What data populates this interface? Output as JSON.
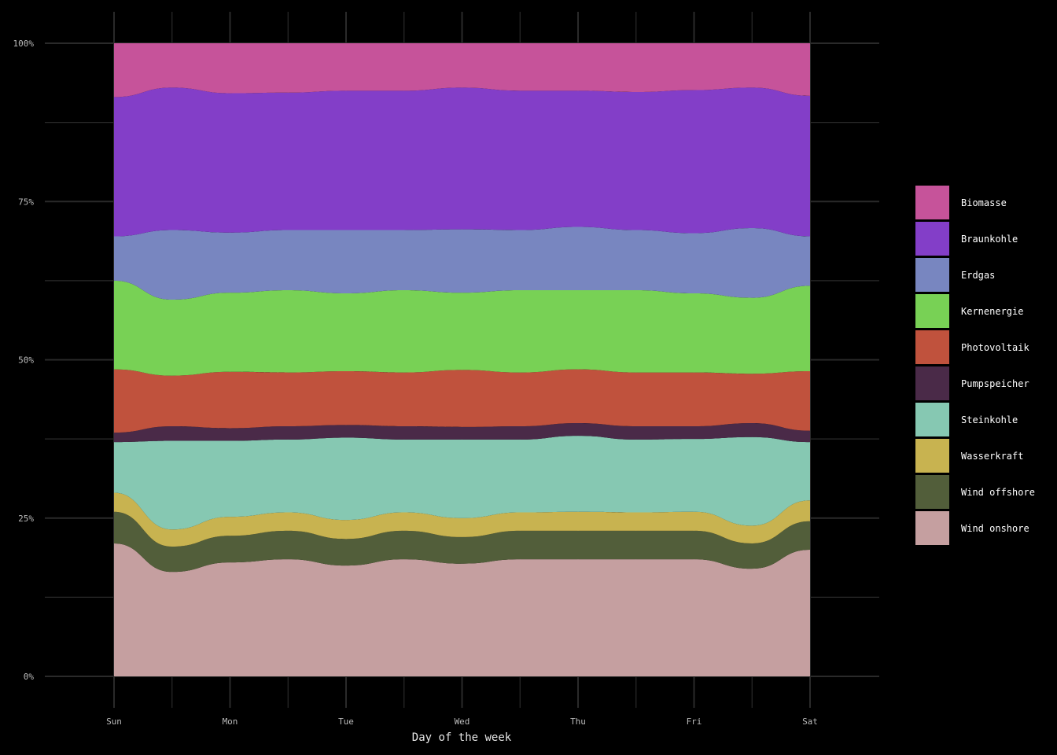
{
  "chart_data": {
    "type": "area",
    "stacked_percent": true,
    "background": "#000000",
    "grid": true,
    "grid_color": "#2a2a2a",
    "xlabel": "Day of the week",
    "ylabel": "",
    "x_ticks": [
      "Sun",
      "Mon",
      "Tue",
      "Wed",
      "Thu",
      "Fri",
      "Sat"
    ],
    "y_ticks": [
      "0%",
      "25%",
      "50%",
      "75%",
      "100%"
    ],
    "ylim": [
      0,
      1
    ],
    "legend_position": "right",
    "x": [
      0,
      0.5,
      1,
      1.5,
      2,
      2.5,
      3,
      3.5,
      4,
      4.5,
      5,
      5.5,
      6
    ],
    "series": [
      {
        "name": "Wind onshore",
        "color": "#C59FA0",
        "values": [
          0.21,
          0.165,
          0.18,
          0.185,
          0.175,
          0.185,
          0.178,
          0.185,
          0.185,
          0.185,
          0.185,
          0.17,
          0.2
        ]
      },
      {
        "name": "Wind offshore",
        "color": "#525E3A",
        "values": [
          0.05,
          0.04,
          0.042,
          0.045,
          0.042,
          0.045,
          0.042,
          0.045,
          0.045,
          0.045,
          0.045,
          0.04,
          0.045
        ]
      },
      {
        "name": "Wasserkraft",
        "color": "#C8B350",
        "values": [
          0.03,
          0.027,
          0.03,
          0.029,
          0.03,
          0.029,
          0.03,
          0.029,
          0.03,
          0.029,
          0.03,
          0.028,
          0.033
        ]
      },
      {
        "name": "Steinkohle",
        "color": "#86C8B2",
        "values": [
          0.08,
          0.14,
          0.12,
          0.115,
          0.13,
          0.115,
          0.124,
          0.115,
          0.12,
          0.115,
          0.115,
          0.14,
          0.092
        ]
      },
      {
        "name": "Pumpspeicher",
        "color": "#4A2A48",
        "values": [
          0.015,
          0.023,
          0.02,
          0.021,
          0.02,
          0.021,
          0.02,
          0.021,
          0.02,
          0.021,
          0.02,
          0.022,
          0.018
        ]
      },
      {
        "name": "Photovoltaik",
        "color": "#C0523D",
        "values": [
          0.1,
          0.08,
          0.089,
          0.085,
          0.085,
          0.085,
          0.09,
          0.085,
          0.085,
          0.085,
          0.085,
          0.078,
          0.094
        ]
      },
      {
        "name": "Kernenergie",
        "color": "#78D155",
        "values": [
          0.14,
          0.12,
          0.125,
          0.13,
          0.123,
          0.13,
          0.122,
          0.13,
          0.125,
          0.13,
          0.125,
          0.12,
          0.135
        ]
      },
      {
        "name": "Erdgas",
        "color": "#7886C0",
        "values": [
          0.07,
          0.11,
          0.095,
          0.095,
          0.1,
          0.095,
          0.1,
          0.095,
          0.1,
          0.095,
          0.095,
          0.11,
          0.078
        ]
      },
      {
        "name": "Braunkohle",
        "color": "#833EC8",
        "values": [
          0.22,
          0.225,
          0.22,
          0.217,
          0.22,
          0.22,
          0.224,
          0.22,
          0.215,
          0.218,
          0.226,
          0.222,
          0.222
        ]
      },
      {
        "name": "Biomasse",
        "color": "#C6539A",
        "values": [
          0.085,
          0.07,
          0.079,
          0.078,
          0.075,
          0.075,
          0.07,
          0.075,
          0.075,
          0.077,
          0.074,
          0.07,
          0.083
        ]
      }
    ],
    "legend_order": [
      "Biomasse",
      "Braunkohle",
      "Erdgas",
      "Kernenergie",
      "Photovoltaik",
      "Pumpspeicher",
      "Steinkohle",
      "Wasserkraft",
      "Wind offshore",
      "Wind onshore"
    ]
  }
}
